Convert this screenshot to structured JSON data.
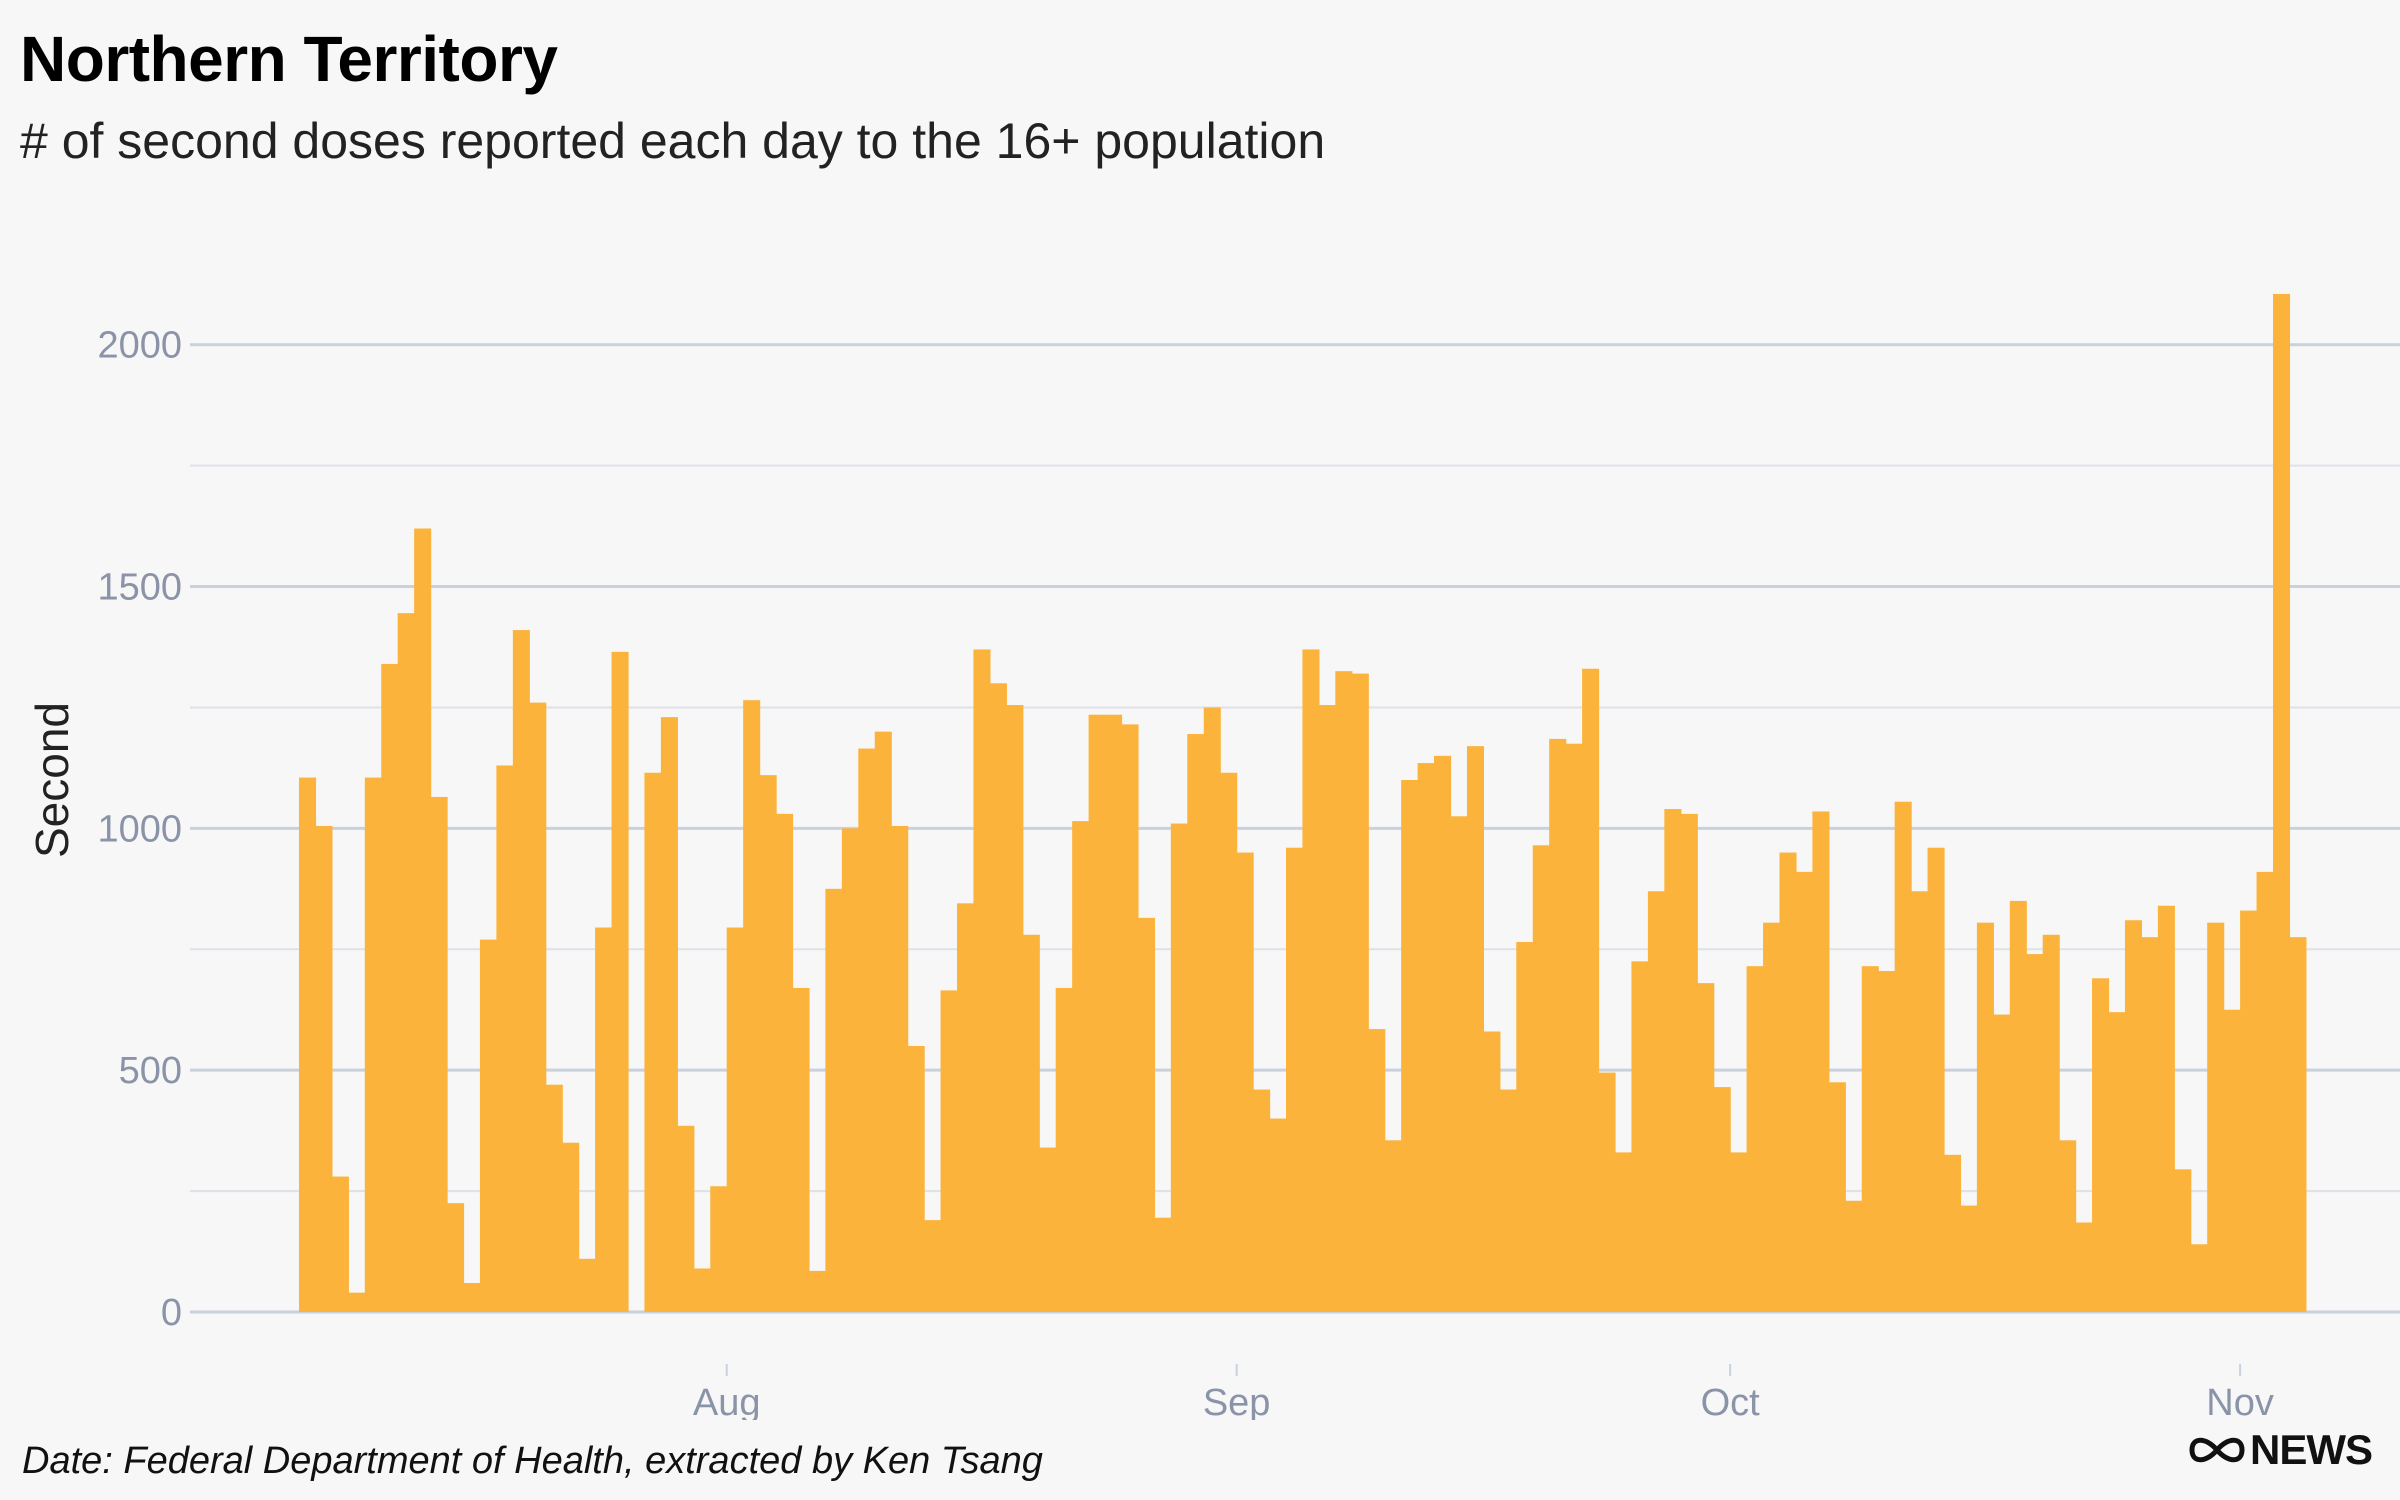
{
  "header": {
    "title": "Northern Territory",
    "subtitle": "# of second doses reported each day to the 16+ population"
  },
  "footer": {
    "source": "Date: Federal Department of Health, extracted by Ken Tsang",
    "logo_text": "NEWS",
    "logo_icon": "abc-lissajous-icon"
  },
  "colors": {
    "bar": "#fbb33b",
    "grid_major": "#c9d1dc",
    "grid_minor": "#dde2e8",
    "tick_text": "#8a93a8"
  },
  "chart_data": {
    "type": "bar",
    "title": "Northern Territory",
    "subtitle": "# of second doses reported each day to the 16+ population",
    "ylabel": "Second",
    "xlabel": "",
    "ylim": [
      0,
      2200
    ],
    "yticks": [
      0,
      500,
      1000,
      1500,
      2000
    ],
    "x_start": "2021-07-06",
    "x_end": "2021-11-05",
    "xticks": [
      {
        "label": "Aug",
        "date": "2021-08-01"
      },
      {
        "label": "Sep",
        "date": "2021-09-01"
      },
      {
        "label": "Oct",
        "date": "2021-10-01"
      },
      {
        "label": "Nov",
        "date": "2021-11-01"
      }
    ],
    "grid": true,
    "legend": "none",
    "values": [
      1105,
      1005,
      280,
      40,
      1105,
      1340,
      1445,
      1620,
      1065,
      225,
      60,
      770,
      1130,
      1410,
      1260,
      470,
      350,
      110,
      795,
      1365,
      0,
      1115,
      1230,
      385,
      90,
      260,
      795,
      1265,
      1110,
      1030,
      670,
      85,
      875,
      1000,
      1165,
      1200,
      1005,
      550,
      190,
      665,
      845,
      1370,
      1300,
      1255,
      780,
      340,
      670,
      1015,
      1235,
      1235,
      1215,
      815,
      195,
      1010,
      1195,
      1250,
      1115,
      950,
      460,
      400,
      960,
      1370,
      1255,
      1325,
      1320,
      585,
      355,
      1100,
      1135,
      1150,
      1025,
      1170,
      580,
      460,
      765,
      965,
      1185,
      1175,
      1330,
      495,
      330,
      725,
      870,
      1040,
      1030,
      680,
      465,
      330,
      715,
      805,
      950,
      910,
      1035,
      475,
      230,
      715,
      705,
      1055,
      870,
      960,
      325,
      220,
      805,
      615,
      850,
      740,
      780,
      355,
      185,
      690,
      620,
      810,
      775,
      840,
      295,
      140,
      805,
      625,
      830,
      910,
      2105,
      775
    ]
  }
}
